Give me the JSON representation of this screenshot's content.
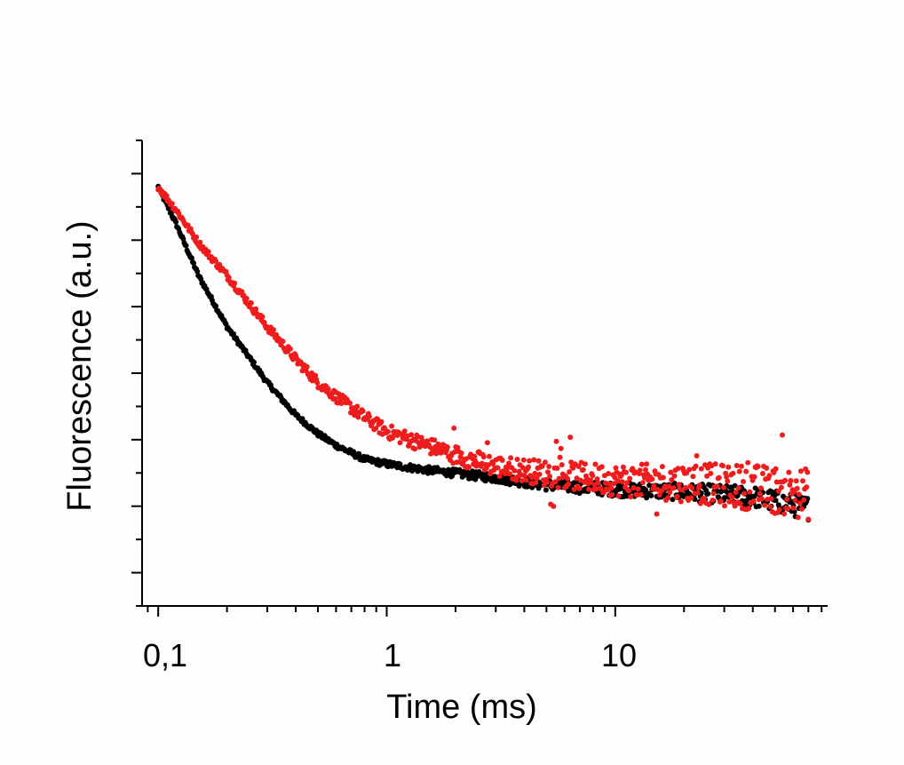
{
  "chart_data": {
    "type": "scatter",
    "title": "",
    "xlabel": "Time (ms)",
    "ylabel": "Fluorescence (a.u.)",
    "xscale": "log",
    "xlim": [
      0.085,
      85
    ],
    "ylim": [
      0,
      1
    ],
    "x_tick_labels": [
      "0,1",
      "1",
      "10"
    ],
    "x_tick_values": [
      0.1,
      1,
      10
    ],
    "y_tick_labels_shown": false,
    "y_major_ticks": 7,
    "grid": false,
    "legend": "none",
    "series": [
      {
        "color": "#000000",
        "points": [
          [
            0.1,
            0.9
          ],
          [
            0.12,
            0.82
          ],
          [
            0.15,
            0.71
          ],
          [
            0.2,
            0.6
          ],
          [
            0.3,
            0.48
          ],
          [
            0.4,
            0.41
          ],
          [
            0.5,
            0.37
          ],
          [
            0.6,
            0.345
          ],
          [
            0.8,
            0.315
          ],
          [
            1.0,
            0.305
          ],
          [
            1.5,
            0.292
          ],
          [
            2.0,
            0.285
          ],
          [
            3.0,
            0.275
          ],
          [
            5.0,
            0.26
          ],
          [
            10.0,
            0.25
          ],
          [
            20.0,
            0.245
          ],
          [
            40.0,
            0.235
          ],
          [
            70.0,
            0.21
          ]
        ]
      },
      {
        "color": "#ee1c1c",
        "points": [
          [
            0.1,
            0.9
          ],
          [
            0.12,
            0.85
          ],
          [
            0.15,
            0.78
          ],
          [
            0.2,
            0.71
          ],
          [
            0.3,
            0.6
          ],
          [
            0.4,
            0.53
          ],
          [
            0.5,
            0.48
          ],
          [
            0.6,
            0.45
          ],
          [
            0.8,
            0.405
          ],
          [
            1.0,
            0.375
          ],
          [
            1.5,
            0.345
          ],
          [
            2.0,
            0.325
          ],
          [
            3.0,
            0.3
          ],
          [
            5.0,
            0.285
          ],
          [
            10.0,
            0.27
          ],
          [
            20.0,
            0.265
          ],
          [
            40.0,
            0.255
          ],
          [
            70.0,
            0.24
          ]
        ]
      }
    ]
  }
}
